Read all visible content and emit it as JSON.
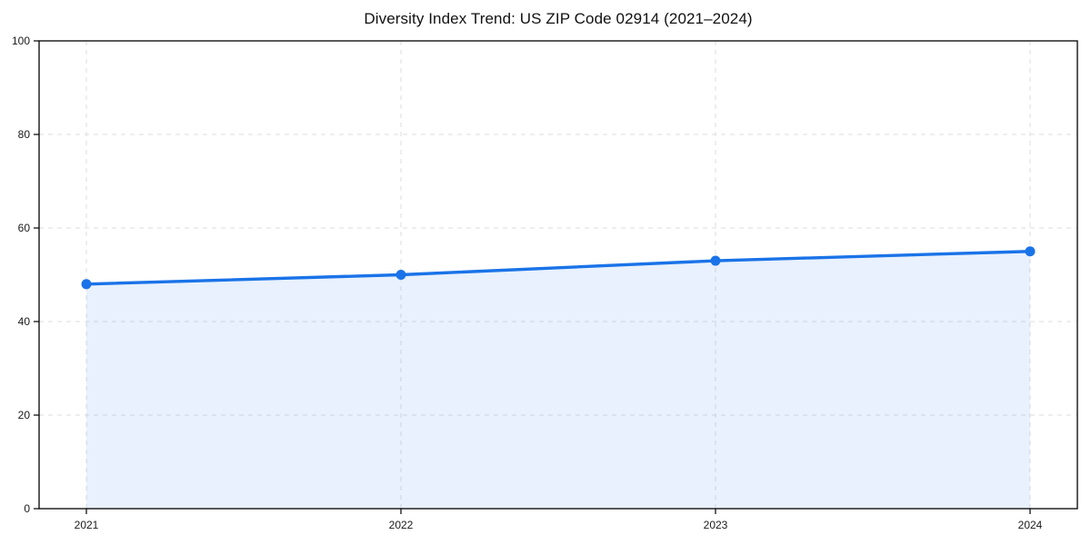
{
  "page": {
    "background_color": "#ffffff"
  },
  "chart_data": {
    "type": "area",
    "title": "Diversity Index Trend: US ZIP Code 02914 (2021–2024)",
    "categories": [
      "2021",
      "2022",
      "2023",
      "2024"
    ],
    "x": [
      2021,
      2022,
      2023,
      2024
    ],
    "series": [
      {
        "name": "Diversity Index",
        "values": [
          48,
          50,
          53,
          55
        ]
      }
    ],
    "xlabel": "",
    "ylabel": "",
    "ylim": [
      0,
      100
    ],
    "yticks": [
      0,
      20,
      40,
      60,
      80,
      100
    ],
    "grid": true,
    "grid_style": "dashed",
    "legend_position": "none",
    "colors": {
      "line": "#1a73e8",
      "marker": "#1a73e8",
      "fill": "#1a73e8",
      "fill_opacity": 0.1,
      "grid": "#dedede",
      "spine": "#000000",
      "tick_label": "#1a1a1a",
      "title": "#111111"
    }
  }
}
